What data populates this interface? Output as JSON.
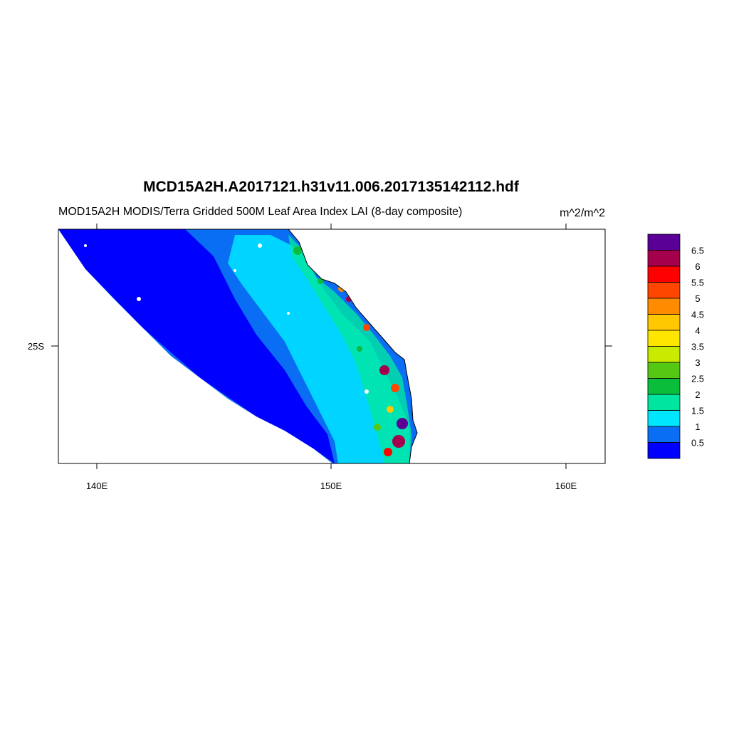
{
  "title": "MCD15A2H.A2017121.h31v11.006.2017135142112.hdf",
  "subtitle": "MOD15A2H MODIS/Terra Gridded 500M Leaf Area Index LAI (8-day composite)",
  "units": "m^2/m^2",
  "x_ticks": [
    "140E",
    "150E",
    "160E"
  ],
  "y_ticks": [
    "25S"
  ],
  "colorbar": {
    "colors": [
      "#0000ff",
      "#0a6ef5",
      "#00e6ff",
      "#00e6a0",
      "#0abe3c",
      "#55c814",
      "#c8eb00",
      "#ffe600",
      "#ffc800",
      "#ff8c00",
      "#ff4600",
      "#ff0000",
      "#a5004b",
      "#5a0096"
    ],
    "labels": [
      "0.5",
      "1",
      "1.5",
      "2",
      "2.5",
      "3",
      "3.5",
      "4",
      "4.5",
      "5",
      "5.5",
      "6",
      "6.5"
    ]
  }
}
